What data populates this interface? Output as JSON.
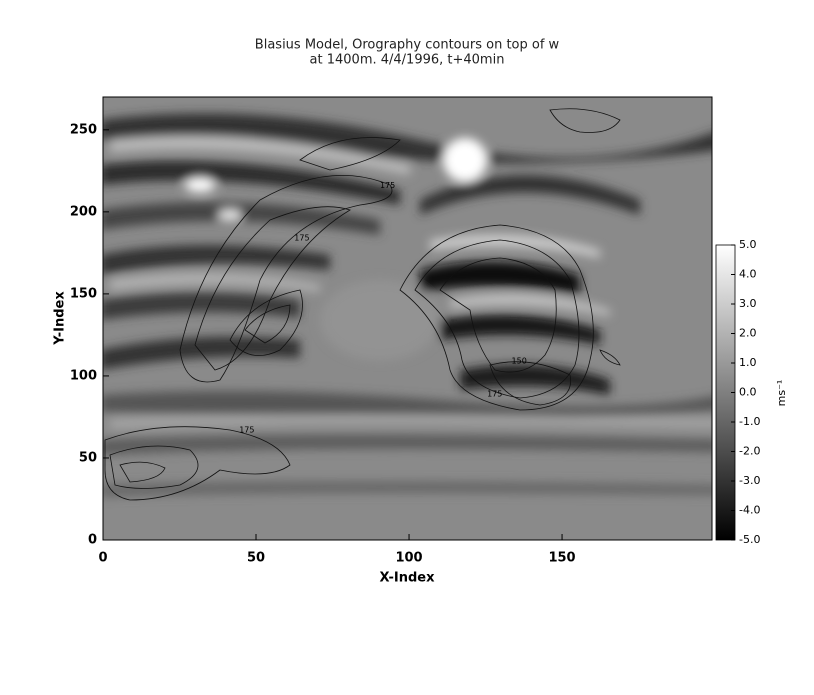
{
  "chart_data": {
    "type": "heatmap",
    "title": [
      "Blasius Model, Orography contours on top of w",
      "at 1400m. 4/4/1996, t+40min"
    ],
    "x_label": "X-Index",
    "y_label": "Y-Index",
    "xlim": [
      0,
      199
    ],
    "ylim": [
      0,
      270
    ],
    "xticks": [
      0,
      50,
      100,
      150
    ],
    "yticks": [
      0,
      50,
      100,
      150,
      200,
      250
    ],
    "colorbar_label": "ms⁻¹",
    "clim": [
      -5,
      5
    ],
    "colormap": [
      "#000000",
      "#ffffff"
    ],
    "colorbar_ticks": [
      {
        "value": 5,
        "label": "5.0"
      },
      {
        "value": 4,
        "label": "4.0"
      },
      {
        "value": 3,
        "label": "3.0"
      },
      {
        "value": 2,
        "label": "2.0"
      },
      {
        "value": 1,
        "label": "1.0"
      },
      {
        "value": 0,
        "label": "0.0"
      },
      {
        "value": -1,
        "label": "-1.0"
      },
      {
        "value": -2,
        "label": "-2.0"
      },
      {
        "value": -3,
        "label": "-3.0"
      },
      {
        "value": -4,
        "label": "-4.0"
      },
      {
        "value": -5,
        "label": "-5.0"
      }
    ],
    "contour_labels": [
      {
        "text": "175",
        "x": 93,
        "y": 216
      },
      {
        "text": "175",
        "x": 65,
        "y": 184
      },
      {
        "text": "150",
        "x": 136,
        "y": 109
      },
      {
        "text": "175",
        "x": 128,
        "y": 89
      },
      {
        "text": "175",
        "x": 47,
        "y": 67
      }
    ]
  }
}
